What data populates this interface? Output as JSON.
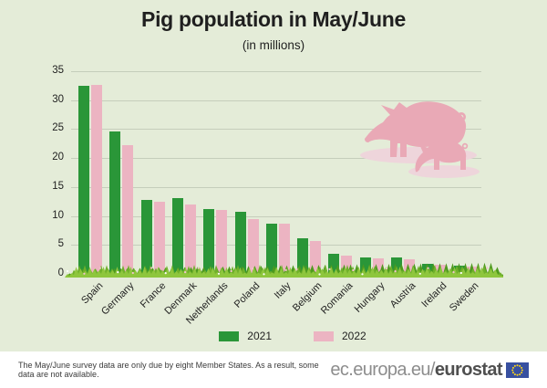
{
  "title": "Pig population in May/June",
  "subtitle": "(in millions)",
  "chart_data": {
    "type": "bar",
    "categories": [
      "Spain",
      "Germany",
      "France",
      "Denmark",
      "Netherlands",
      "Poland",
      "Italy",
      "Belgium",
      "Romania",
      "Hungary",
      "Austria",
      "Ireland",
      "Sweden"
    ],
    "series": [
      {
        "name": "2021",
        "color": "#2a9638",
        "values": [
          32.4,
          24.6,
          12.8,
          13.1,
          11.2,
          10.7,
          8.7,
          6.1,
          3.4,
          2.9,
          2.8,
          1.7,
          1.4
        ]
      },
      {
        "name": "2022",
        "color": "#ecb4c2",
        "values": [
          32.7,
          22.3,
          12.5,
          12.0,
          11.0,
          9.4,
          8.6,
          5.7,
          3.2,
          2.7,
          2.6,
          1.6,
          1.3
        ]
      }
    ],
    "title": "Pig population in May/June",
    "subtitle": "(in millions)",
    "xlabel": "",
    "ylabel": "",
    "ylim": [
      0,
      35
    ],
    "yticks": [
      0,
      5,
      10,
      15,
      20,
      25,
      30,
      35
    ],
    "grid": true,
    "legend_position": "bottom"
  },
  "legend": {
    "items": [
      {
        "label": "2021",
        "color": "#2a9638"
      },
      {
        "label": "2022",
        "color": "#ecb4c2"
      }
    ]
  },
  "decorations": {
    "pigs_illustration": "two-pink-pigs-grazing",
    "grass": "grass-strip-with-flowers"
  },
  "footer": {
    "note": "The May/June survey data are only due by eight Member States. As a result, some data are not available.",
    "url_prefix": "ec.europa.eu/",
    "url_brand": "eurostat",
    "flag_icon": "eu-flag-icon"
  },
  "colors": {
    "background": "#e4ecd8",
    "bar_2021": "#2a9638",
    "bar_2022": "#ecb4c2",
    "grid": "#c5cebb",
    "text": "#1f1f1f",
    "pig": "#e9a9b6",
    "pig_shadow": "#eed5db",
    "grass_dark": "#4e9a1e",
    "grass_mid": "#6fb02a",
    "grass_light": "#8ec63d",
    "flower_pink": "#f3c3cf",
    "flower_white": "#fdfdfd",
    "footer_bg": "#ffffff",
    "url_gray": "#8d8d8d",
    "brand_gray": "#4f4f4f",
    "eu_flag_blue": "#3850a0",
    "eu_star_yellow": "#ffd617"
  }
}
